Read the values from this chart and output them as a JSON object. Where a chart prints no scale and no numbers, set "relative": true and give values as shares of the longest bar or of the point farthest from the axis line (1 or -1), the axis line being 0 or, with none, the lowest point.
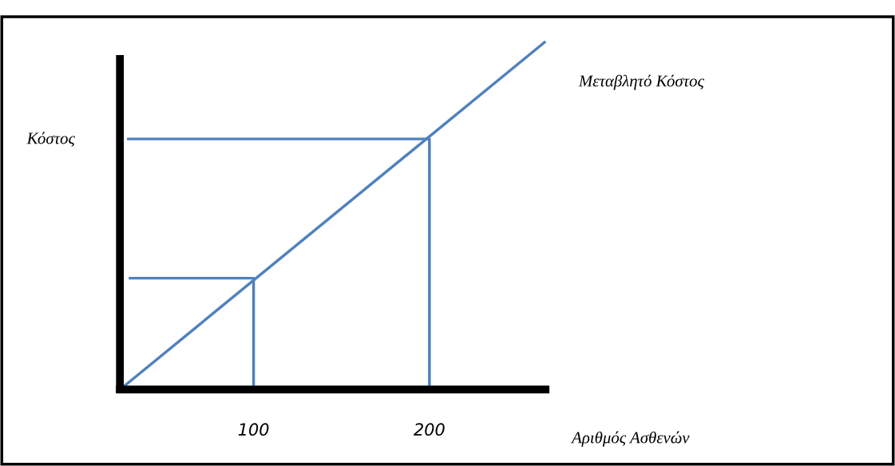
{
  "chart_data": {
    "type": "line",
    "relative": true,
    "xlabel": "Αριθμός Ασθενών",
    "ylabel": "Κόστος",
    "xlim": [
      24,
      266
    ],
    "xticks": [
      100,
      200
    ],
    "grid": false,
    "legend": false,
    "marker": "none",
    "line_style": "solid",
    "series": [
      {
        "name": "Μεταβλητό Κόστος",
        "color": "#4f81bd",
        "x": [
          24,
          266
        ],
        "values": [
          0,
          1
        ]
      },
      {
        "color": "#4f81bd",
        "x": [
          29,
          100,
          100
        ],
        "values": [
          0.32,
          0.32,
          0
        ]
      },
      {
        "color": "#4f81bd",
        "x": [
          28,
          200,
          200
        ],
        "values": [
          0.72,
          0.72,
          0
        ]
      }
    ]
  }
}
